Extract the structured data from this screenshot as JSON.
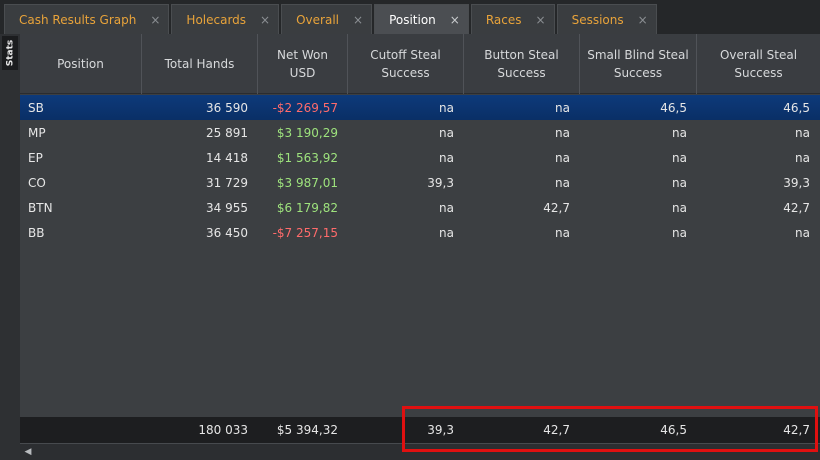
{
  "tabs": [
    {
      "label": "Cash Results Graph",
      "active": false
    },
    {
      "label": "Holecards",
      "active": false
    },
    {
      "label": "Overall",
      "active": false
    },
    {
      "label": "Position",
      "active": true
    },
    {
      "label": "Races",
      "active": false
    },
    {
      "label": "Sessions",
      "active": false
    }
  ],
  "tab_close_glyph": "×",
  "side": {
    "stats_label": "Stats"
  },
  "table": {
    "columns": [
      "Position",
      "Total Hands",
      "Net Won\nUSD",
      "Cutoff Steal\nSuccess",
      "Button Steal\nSuccess",
      "Small Blind Steal\nSuccess",
      "Overall Steal\nSuccess"
    ],
    "rows": [
      {
        "position": "SB",
        "hands": "36 590",
        "net": "-$2 269,57",
        "cutoff": "na",
        "button": "na",
        "sb": "46,5",
        "overall": "46,5",
        "net_sign": "neg",
        "selected": true
      },
      {
        "position": "MP",
        "hands": "25 891",
        "net": "$3 190,29",
        "cutoff": "na",
        "button": "na",
        "sb": "na",
        "overall": "na",
        "net_sign": "gain",
        "selected": false
      },
      {
        "position": "EP",
        "hands": "14 418",
        "net": "$1 563,92",
        "cutoff": "na",
        "button": "na",
        "sb": "na",
        "overall": "na",
        "net_sign": "gain",
        "selected": false
      },
      {
        "position": "CO",
        "hands": "31 729",
        "net": "$3 987,01",
        "cutoff": "39,3",
        "button": "na",
        "sb": "na",
        "overall": "39,3",
        "net_sign": "gain",
        "selected": false
      },
      {
        "position": "BTN",
        "hands": "34 955",
        "net": "$6 179,82",
        "cutoff": "na",
        "button": "42,7",
        "sb": "na",
        "overall": "42,7",
        "net_sign": "gain",
        "selected": false
      },
      {
        "position": "BB",
        "hands": "36 450",
        "net": "-$7 257,15",
        "cutoff": "na",
        "button": "na",
        "sb": "na",
        "overall": "na",
        "net_sign": "neg",
        "selected": false
      }
    ],
    "totals": {
      "position": "",
      "hands": "180 033",
      "net": "$5 394,32",
      "cutoff": "39,3",
      "button": "42,7",
      "sb": "46,5",
      "overall": "42,7"
    }
  },
  "colors": {
    "accent_tab": "#e8a33a",
    "negative": "#ff6b6b",
    "positive": "#9ee37d",
    "selected_row": "#0d3a7a",
    "highlight": "#e01010"
  }
}
